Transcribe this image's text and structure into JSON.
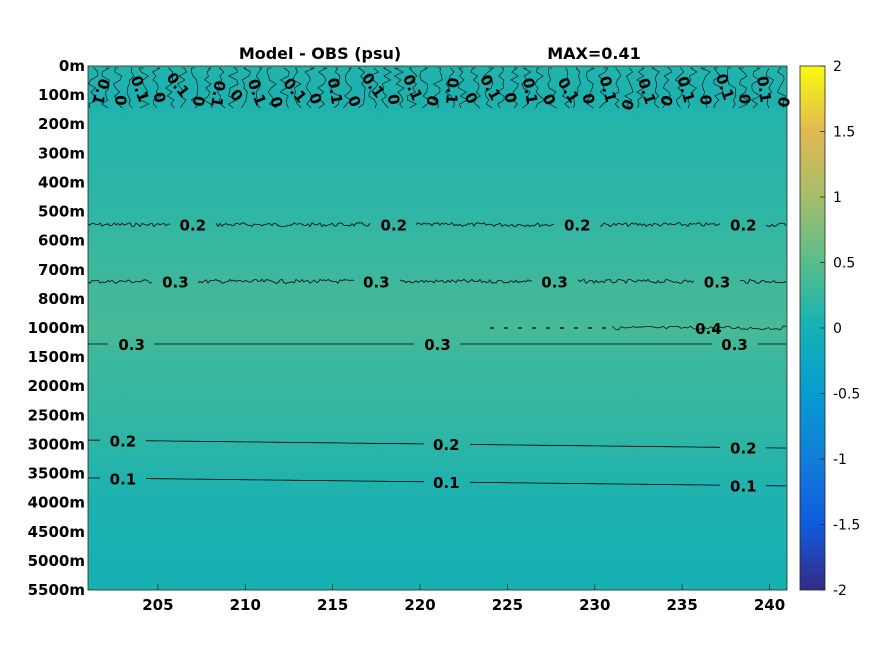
{
  "chart_data": {
    "type": "heatmap",
    "title": "Model - OBS (psu)",
    "max_label": "MAX=0.41",
    "xlabel": "",
    "ylabel": "",
    "x_ticks": [
      205,
      210,
      215,
      220,
      225,
      230,
      235,
      240
    ],
    "xlim": [
      201,
      241
    ],
    "y_ticks": [
      "0m",
      "100m",
      "200m",
      "300m",
      "400m",
      "500m",
      "600m",
      "700m",
      "800m",
      "1000m",
      "1500m",
      "2000m",
      "2500m",
      "3000m",
      "3500m",
      "4000m",
      "4500m",
      "5000m",
      "5500m"
    ],
    "y_reversed": true,
    "colormap": "parula",
    "clim": [
      -2,
      2
    ],
    "colorbar_ticks": [
      2,
      1.5,
      1,
      0.5,
      0,
      -0.5,
      -1,
      -1.5,
      -2
    ],
    "depth_profile": [
      {
        "depth": "0m",
        "value": 0.1
      },
      {
        "depth": "100m",
        "value": 0.05
      },
      {
        "depth": "200m",
        "value": 0.12
      },
      {
        "depth": "300m",
        "value": 0.14
      },
      {
        "depth": "400m",
        "value": 0.16
      },
      {
        "depth": "500m",
        "value": 0.19
      },
      {
        "depth": "600m",
        "value": 0.24
      },
      {
        "depth": "700m",
        "value": 0.29
      },
      {
        "depth": "800m",
        "value": 0.33
      },
      {
        "depth": "1000m",
        "value": 0.37
      },
      {
        "depth": "1500m",
        "value": 0.29
      },
      {
        "depth": "2000m",
        "value": 0.25
      },
      {
        "depth": "2500m",
        "value": 0.22
      },
      {
        "depth": "3000m",
        "value": 0.17
      },
      {
        "depth": "3500m",
        "value": 0.1
      },
      {
        "depth": "4000m",
        "value": 0.06
      },
      {
        "depth": "4500m",
        "value": 0.04
      },
      {
        "depth": "5000m",
        "value": 0.02
      },
      {
        "depth": "5500m",
        "value": 0.01
      }
    ],
    "contours": [
      {
        "level": 0.2,
        "label": "0.2",
        "depth_index": 5.45,
        "label_x": [
          207.0,
          218.5,
          229.0,
          238.5
        ]
      },
      {
        "level": 0.3,
        "label": "0.3",
        "depth_index": 7.4,
        "label_x": [
          206.0,
          217.5,
          227.7,
          237.0
        ]
      },
      {
        "level": 0.3,
        "label": "0.3",
        "depth_index": 9.55,
        "label_x": [
          203.5,
          221.0,
          238.0
        ]
      },
      {
        "level": 0.4,
        "label": "0.4",
        "depth_index": 9.0,
        "label_x": [
          236.5
        ]
      },
      {
        "level": 0.2,
        "label": "0.2",
        "depth_index": 12.85,
        "label_x": [
          203.0,
          221.5,
          238.5
        ]
      },
      {
        "level": 0.1,
        "label": "0.1",
        "depth_index": 14.15,
        "label_x": [
          203.0,
          221.5,
          238.5
        ]
      }
    ],
    "surface_labels": [
      "0.1",
      "0"
    ]
  }
}
